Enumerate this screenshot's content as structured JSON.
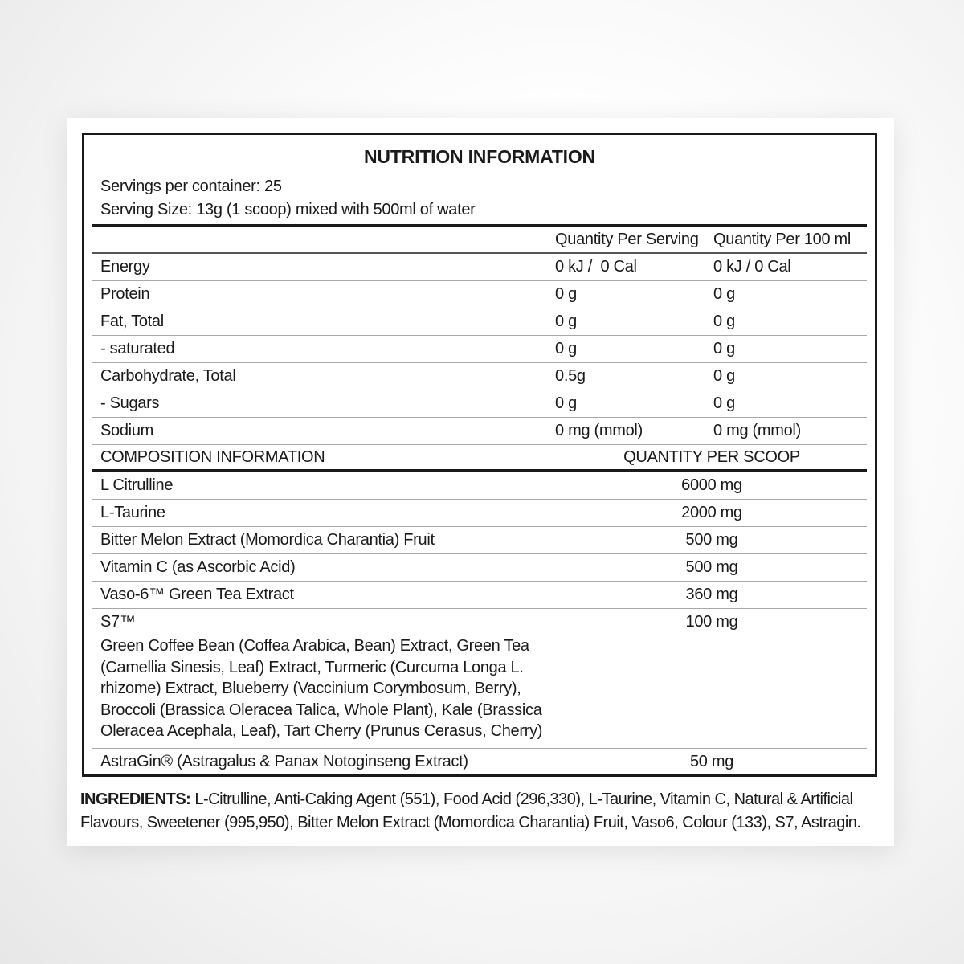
{
  "title": "NUTRITION INFORMATION",
  "serving_info": {
    "servings_per_container": "Servings per container: 25",
    "serving_size": "Serving Size: 13g (1 scoop) mixed with 500ml of water"
  },
  "nutrition_table": {
    "columns": {
      "per_serving": "Quantity Per Serving",
      "per_100ml": "Quantity Per 100 ml"
    },
    "rows": [
      {
        "label": "Energy",
        "per_serving": "0 kJ /  0 Cal",
        "per_100ml": "0 kJ / 0 Cal"
      },
      {
        "label": "Protein",
        "per_serving": "0 g",
        "per_100ml": "0 g"
      },
      {
        "label": "Fat, Total",
        "per_serving": "0 g",
        "per_100ml": "0 g"
      },
      {
        "label": "- saturated",
        "per_serving": "0 g",
        "per_100ml": "0 g"
      },
      {
        "label": "Carbohydrate, Total",
        "per_serving": "0.5g",
        "per_100ml": "0 g"
      },
      {
        "label": "- Sugars",
        "per_serving": "0 g",
        "per_100ml": "0 g"
      },
      {
        "label": "Sodium",
        "per_serving": "0 mg (mmol)",
        "per_100ml": "0 mg (mmol)"
      }
    ]
  },
  "composition_table": {
    "header": {
      "label": "COMPOSITION INFORMATION",
      "quantity": "QUANTITY PER SCOOP"
    },
    "rows": [
      {
        "label": "L Citrulline",
        "quantity": "6000 mg"
      },
      {
        "label": "L-Taurine",
        "quantity": "2000 mg"
      },
      {
        "label": "Bitter Melon Extract (Momordica Charantia) Fruit",
        "quantity": "500 mg"
      },
      {
        "label": "Vitamin C (as Ascorbic Acid)",
        "quantity": "500 mg"
      },
      {
        "label": "Vaso-6™ Green Tea Extract",
        "quantity": "360 mg"
      },
      {
        "label": "S7™",
        "quantity": "100 mg",
        "description": "Green Coffee Bean (Coffea Arabica, Bean) Extract, Green Tea (Camellia Sinesis, Leaf) Extract, Turmeric (Curcuma Longa L. rhizome) Extract, Blueberry (Vaccinium Corymbosum, Berry), Broccoli (Brassica Oleracea Talica, Whole Plant), Kale (Brassica Oleracea Acephala, Leaf), Tart Cherry (Prunus Cerasus, Cherry)"
      },
      {
        "label": "AstraGin® (Astragalus & Panax Notoginseng Extract)",
        "quantity": "50 mg"
      }
    ]
  },
  "ingredients": {
    "label": "INGREDIENTS:",
    "text": " L-Citrulline, Anti-Caking Agent (551), Food Acid (296,330), L-Taurine, Vitamin C, Natural & Artificial Flavours, Sweetener (995,950), Bitter Melon Extract (Momordica Charantia) Fruit, Vaso6, Colour (133), S7, Astragin."
  },
  "colors": {
    "text": "#1a1a1a",
    "rule_light": "#a8a8a8",
    "rule_dark": "#1a1a1a",
    "card_bg": "#ffffff",
    "page_bg": "#ececec"
  }
}
